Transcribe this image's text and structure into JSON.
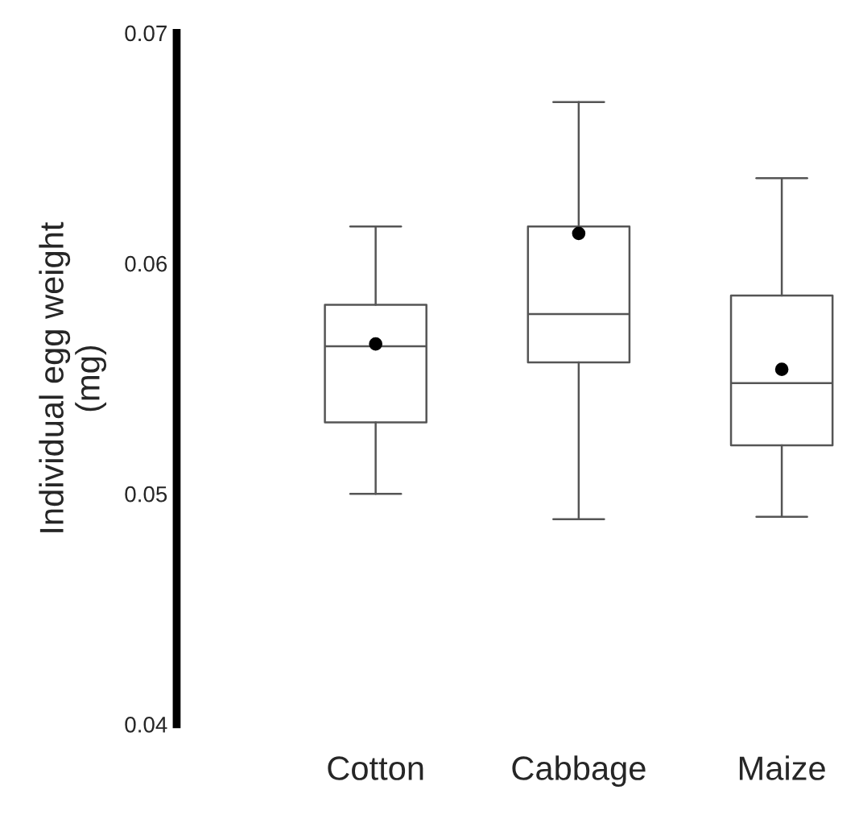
{
  "chart_data": {
    "type": "box",
    "ylabel": "Individual egg weight\n(mg)",
    "categories": [
      "Cotton",
      "Cabbage",
      "Maize"
    ],
    "boxes": [
      {
        "low": 0.05,
        "q1": 0.0531,
        "median": 0.0564,
        "q3": 0.0582,
        "high": 0.0616,
        "mean": 0.0565
      },
      {
        "low": 0.0489,
        "q1": 0.0557,
        "median": 0.0578,
        "q3": 0.0616,
        "high": 0.067,
        "mean": 0.0613
      },
      {
        "low": 0.049,
        "q1": 0.0521,
        "median": 0.0548,
        "q3": 0.0586,
        "high": 0.0637,
        "mean": 0.0554
      }
    ],
    "color": "#555555",
    "ylim": [
      0.04,
      0.07
    ],
    "yticks": [
      0.04,
      0.05,
      0.06,
      0.07
    ],
    "grid": false,
    "legend": false
  }
}
